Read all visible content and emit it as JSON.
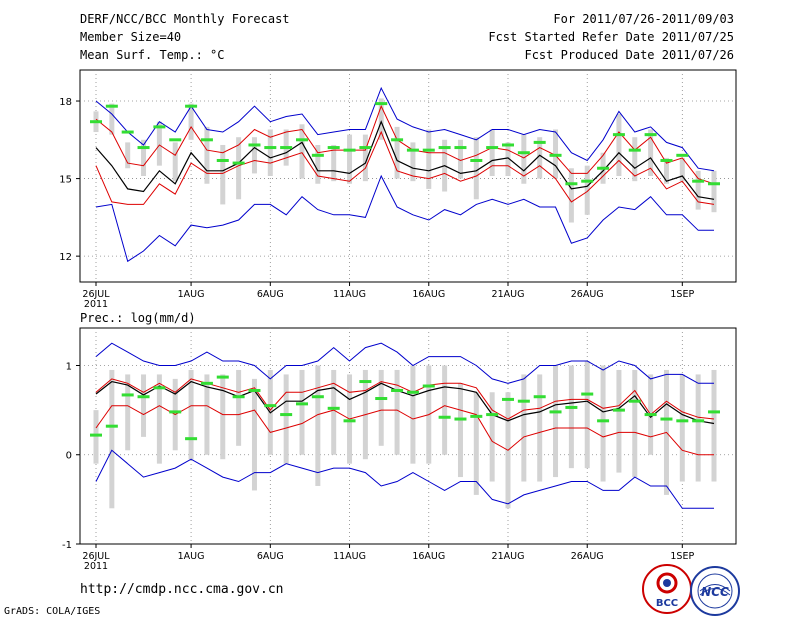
{
  "header": {
    "title": "DERF/NCC/BCC Monthly Forecast",
    "member_size": "Member Size=40",
    "variable1": "Mean Surf. Temp.: °C",
    "period": "For 2011/07/26-2011/09/03",
    "started": "Fcst Started Refer Date 2011/07/25",
    "produced": "Fcst Produced Date 2011/07/26"
  },
  "footer": {
    "url": "http://cmdp.ncc.cma.gov.cn",
    "credit": "GrADS: COLA/IGES",
    "logo_bcc": "BCC",
    "logo_ncc": "NCC"
  },
  "colors": {
    "bound": "#0000cc",
    "inner": "#dd0000",
    "mean": "#000000",
    "obs": "#33dd33",
    "box": "#d3d3d3",
    "grid": "#888888"
  },
  "chart_data": [
    {
      "type": "line",
      "title": "Mean Surf. Temp.: °C",
      "xlabel": "",
      "ylabel": "",
      "ylim": [
        11,
        19.2
      ],
      "yticks": [
        12,
        15,
        18
      ],
      "xticks": [
        {
          "day": 0,
          "label": "26JUL",
          "sub": "2011"
        },
        {
          "day": 6,
          "label": "1AUG",
          "sub": ""
        },
        {
          "day": 11,
          "label": "6AUG",
          "sub": ""
        },
        {
          "day": 16,
          "label": "11AUG",
          "sub": ""
        },
        {
          "day": 21,
          "label": "16AUG",
          "sub": ""
        },
        {
          "day": 26,
          "label": "21AUG",
          "sub": ""
        },
        {
          "day": 31,
          "label": "26AUG",
          "sub": ""
        },
        {
          "day": 37,
          "label": "1SEP",
          "sub": ""
        }
      ],
      "x": [
        0,
        1,
        2,
        3,
        4,
        5,
        6,
        7,
        8,
        9,
        10,
        11,
        12,
        13,
        14,
        15,
        16,
        17,
        18,
        19,
        20,
        21,
        22,
        23,
        24,
        25,
        26,
        27,
        28,
        29,
        30,
        31,
        32,
        33,
        34,
        35,
        36,
        37,
        38,
        39
      ],
      "series": [
        {
          "name": "max",
          "values": [
            18.0,
            17.5,
            16.8,
            16.3,
            17.2,
            16.8,
            17.8,
            16.9,
            16.8,
            17.2,
            17.8,
            17.2,
            17.4,
            17.5,
            16.7,
            16.8,
            16.9,
            16.9,
            18.5,
            17.3,
            17.0,
            16.8,
            16.9,
            16.7,
            16.5,
            16.9,
            16.9,
            16.7,
            16.9,
            16.8,
            16.0,
            15.7,
            16.5,
            17.6,
            16.8,
            17.0,
            16.4,
            16.2,
            15.4,
            15.3
          ]
        },
        {
          "name": "upper",
          "values": [
            17.3,
            16.8,
            15.6,
            15.5,
            16.3,
            15.9,
            17.0,
            16.1,
            16.0,
            16.3,
            16.9,
            16.6,
            16.8,
            16.9,
            16.0,
            16.1,
            16.1,
            16.1,
            17.8,
            16.5,
            16.1,
            16.0,
            16.0,
            15.7,
            15.9,
            16.2,
            16.1,
            15.8,
            16.2,
            15.9,
            15.2,
            15.2,
            15.9,
            16.8,
            16.1,
            16.6,
            15.6,
            15.8,
            15.0,
            14.8
          ]
        },
        {
          "name": "mean",
          "values": [
            16.2,
            15.5,
            14.6,
            14.5,
            15.3,
            14.8,
            16.0,
            15.3,
            15.3,
            15.6,
            16.2,
            15.8,
            16.0,
            16.4,
            15.3,
            15.3,
            15.2,
            15.6,
            17.2,
            15.7,
            15.4,
            15.3,
            15.5,
            15.2,
            15.3,
            15.7,
            15.8,
            15.3,
            15.9,
            15.5,
            14.6,
            14.7,
            15.3,
            16.0,
            15.4,
            15.8,
            14.9,
            15.1,
            14.3,
            14.2
          ]
        },
        {
          "name": "lower",
          "values": [
            15.5,
            14.1,
            14.0,
            14.0,
            14.8,
            14.4,
            15.6,
            15.2,
            15.2,
            15.5,
            15.7,
            15.6,
            15.8,
            16.0,
            15.1,
            15.0,
            14.9,
            15.4,
            16.8,
            15.3,
            15.1,
            15.0,
            15.2,
            14.9,
            15.1,
            15.5,
            15.5,
            15.1,
            15.5,
            15.0,
            14.1,
            14.5,
            15.1,
            15.7,
            15.1,
            15.4,
            14.6,
            14.9,
            14.1,
            14.0
          ]
        },
        {
          "name": "min",
          "values": [
            13.9,
            14.0,
            11.8,
            12.2,
            12.8,
            12.4,
            13.2,
            13.1,
            13.2,
            13.4,
            14.0,
            14.0,
            13.6,
            14.3,
            13.8,
            13.6,
            13.6,
            13.5,
            15.1,
            13.9,
            13.6,
            13.4,
            13.8,
            13.6,
            14.0,
            14.2,
            14.0,
            14.2,
            13.9,
            13.9,
            12.5,
            12.7,
            13.4,
            13.9,
            13.8,
            14.3,
            13.6,
            13.6,
            13.0,
            13.0
          ]
        },
        {
          "name": "observed",
          "values": [
            17.2,
            17.8,
            16.8,
            16.2,
            17.0,
            16.5,
            17.8,
            16.5,
            15.7,
            15.6,
            16.3,
            16.2,
            16.2,
            16.5,
            15.9,
            16.2,
            16.1,
            16.2,
            17.9,
            16.5,
            16.1,
            16.1,
            16.2,
            16.2,
            15.7,
            16.2,
            16.3,
            16.0,
            16.4,
            15.9,
            14.8,
            14.9,
            15.4,
            16.7,
            16.1,
            16.7,
            15.7,
            15.9,
            14.9,
            14.8
          ]
        },
        {
          "name": "box_high",
          "values": [
            17.6,
            17.9,
            16.4,
            16.5,
            17.2,
            16.4,
            17.9,
            17.0,
            16.3,
            16.6,
            16.6,
            16.9,
            16.9,
            17.1,
            16.3,
            16.3,
            16.7,
            16.7,
            18.1,
            17.0,
            16.4,
            16.9,
            16.5,
            16.5,
            16.6,
            16.9,
            16.4,
            16.7,
            16.6,
            16.9,
            15.4,
            15.5,
            16.0,
            17.5,
            16.6,
            16.9,
            15.8,
            15.8,
            15.3,
            15.3
          ]
        },
        {
          "name": "box_low",
          "values": [
            16.8,
            16.7,
            15.4,
            15.1,
            15.5,
            14.9,
            16.5,
            14.8,
            14.0,
            14.2,
            15.2,
            15.1,
            15.5,
            15.0,
            14.8,
            14.9,
            14.8,
            14.9,
            16.5,
            15.0,
            14.9,
            14.6,
            14.5,
            15.0,
            14.2,
            15.1,
            15.1,
            14.8,
            15.0,
            15.0,
            13.3,
            13.6,
            14.8,
            15.1,
            14.9,
            15.1,
            14.8,
            14.9,
            13.8,
            13.7
          ]
        }
      ]
    },
    {
      "type": "line",
      "title": "Prec.: log(mm/d)",
      "xlabel": "",
      "ylabel": "",
      "ylim": [
        -1,
        1.42
      ],
      "yticks": [
        -1,
        0,
        1
      ],
      "xticks": [
        {
          "day": 0,
          "label": "26JUL",
          "sub": "2011"
        },
        {
          "day": 6,
          "label": "1AUG",
          "sub": ""
        },
        {
          "day": 11,
          "label": "6AUG",
          "sub": ""
        },
        {
          "day": 16,
          "label": "11AUG",
          "sub": ""
        },
        {
          "day": 21,
          "label": "16AUG",
          "sub": ""
        },
        {
          "day": 26,
          "label": "21AUG",
          "sub": ""
        },
        {
          "day": 31,
          "label": "26AUG",
          "sub": ""
        },
        {
          "day": 37,
          "label": "1SEP",
          "sub": ""
        }
      ],
      "x": [
        0,
        1,
        2,
        3,
        4,
        5,
        6,
        7,
        8,
        9,
        10,
        11,
        12,
        13,
        14,
        15,
        16,
        17,
        18,
        19,
        20,
        21,
        22,
        23,
        24,
        25,
        26,
        27,
        28,
        29,
        30,
        31,
        32,
        33,
        34,
        35,
        36,
        37,
        38,
        39
      ],
      "series": [
        {
          "name": "max",
          "values": [
            1.1,
            1.25,
            1.15,
            1.05,
            1.0,
            1.0,
            1.05,
            1.15,
            1.05,
            1.05,
            1.0,
            0.85,
            1.0,
            1.0,
            1.05,
            1.2,
            1.05,
            1.2,
            1.25,
            1.15,
            1.0,
            1.1,
            1.1,
            1.1,
            1.0,
            0.85,
            0.8,
            0.85,
            1.0,
            1.0,
            1.05,
            1.05,
            0.95,
            1.05,
            1.0,
            0.85,
            0.9,
            0.9,
            0.8,
            0.8
          ]
        },
        {
          "name": "upper",
          "values": [
            0.7,
            0.85,
            0.8,
            0.7,
            0.8,
            0.7,
            0.85,
            0.8,
            0.75,
            0.7,
            0.75,
            0.5,
            0.7,
            0.7,
            0.75,
            0.8,
            0.7,
            0.72,
            0.82,
            0.78,
            0.7,
            0.78,
            0.8,
            0.8,
            0.75,
            0.5,
            0.4,
            0.5,
            0.52,
            0.6,
            0.62,
            0.62,
            0.52,
            0.55,
            0.72,
            0.45,
            0.6,
            0.48,
            0.42,
            0.4
          ]
        },
        {
          "name": "mean",
          "values": [
            0.68,
            0.82,
            0.78,
            0.67,
            0.77,
            0.68,
            0.82,
            0.76,
            0.72,
            0.65,
            0.72,
            0.47,
            0.6,
            0.6,
            0.72,
            0.75,
            0.62,
            0.7,
            0.8,
            0.72,
            0.66,
            0.72,
            0.76,
            0.74,
            0.7,
            0.45,
            0.38,
            0.45,
            0.48,
            0.56,
            0.58,
            0.6,
            0.48,
            0.52,
            0.66,
            0.42,
            0.57,
            0.45,
            0.38,
            0.35
          ]
        },
        {
          "name": "lower",
          "values": [
            0.3,
            0.55,
            0.55,
            0.45,
            0.55,
            0.45,
            0.55,
            0.55,
            0.45,
            0.45,
            0.5,
            0.25,
            0.3,
            0.35,
            0.45,
            0.5,
            0.4,
            0.45,
            0.5,
            0.5,
            0.4,
            0.45,
            0.55,
            0.5,
            0.45,
            0.15,
            0.05,
            0.2,
            0.25,
            0.3,
            0.3,
            0.3,
            0.2,
            0.25,
            0.25,
            0.2,
            0.25,
            0.05,
            0.0,
            0.0
          ]
        },
        {
          "name": "min",
          "values": [
            -0.3,
            0.05,
            -0.1,
            -0.25,
            -0.2,
            -0.15,
            -0.05,
            -0.15,
            -0.25,
            -0.3,
            -0.2,
            -0.2,
            -0.1,
            -0.15,
            -0.2,
            -0.15,
            -0.15,
            -0.2,
            -0.35,
            -0.3,
            -0.2,
            -0.3,
            -0.4,
            -0.3,
            -0.3,
            -0.5,
            -0.55,
            -0.45,
            -0.4,
            -0.35,
            -0.3,
            -0.3,
            -0.4,
            -0.4,
            -0.25,
            -0.35,
            -0.35,
            -0.6,
            -0.6,
            -0.6
          ]
        },
        {
          "name": "observed",
          "values": [
            0.22,
            0.32,
            0.67,
            0.65,
            0.75,
            0.48,
            0.18,
            0.8,
            0.87,
            0.65,
            0.72,
            0.55,
            0.45,
            0.57,
            0.65,
            0.52,
            0.38,
            0.82,
            0.63,
            0.72,
            0.7,
            0.77,
            0.42,
            0.4,
            0.43,
            0.45,
            0.62,
            0.6,
            0.65,
            0.48,
            0.53,
            0.68,
            0.38,
            0.5,
            0.6,
            0.45,
            0.4,
            0.38,
            0.38,
            0.48
          ]
        },
        {
          "name": "box_high",
          "values": [
            0.5,
            0.95,
            0.9,
            0.9,
            0.9,
            0.85,
            0.95,
            0.9,
            0.9,
            0.95,
            0.85,
            0.95,
            0.9,
            0.95,
            1.0,
            0.95,
            0.9,
            0.95,
            0.95,
            0.95,
            1.0,
            1.0,
            1.0,
            0.8,
            0.7,
            0.7,
            0.7,
            0.9,
            0.9,
            1.0,
            1.0,
            1.05,
            1.0,
            0.95,
            0.95,
            0.9,
            0.95,
            0.9,
            0.9,
            0.95
          ]
        },
        {
          "name": "box_low",
          "values": [
            -0.1,
            -0.6,
            0.05,
            0.2,
            -0.1,
            0.05,
            -0.05,
            0.0,
            -0.05,
            0.1,
            -0.4,
            0.0,
            -0.1,
            0.0,
            -0.35,
            0.0,
            -0.1,
            -0.05,
            0.1,
            0.0,
            -0.1,
            -0.1,
            0.0,
            -0.25,
            -0.45,
            -0.3,
            -0.6,
            -0.3,
            -0.3,
            -0.25,
            -0.15,
            -0.15,
            -0.3,
            -0.2,
            -0.25,
            0.0,
            -0.45,
            -0.3,
            -0.3,
            -0.3
          ]
        }
      ]
    }
  ]
}
